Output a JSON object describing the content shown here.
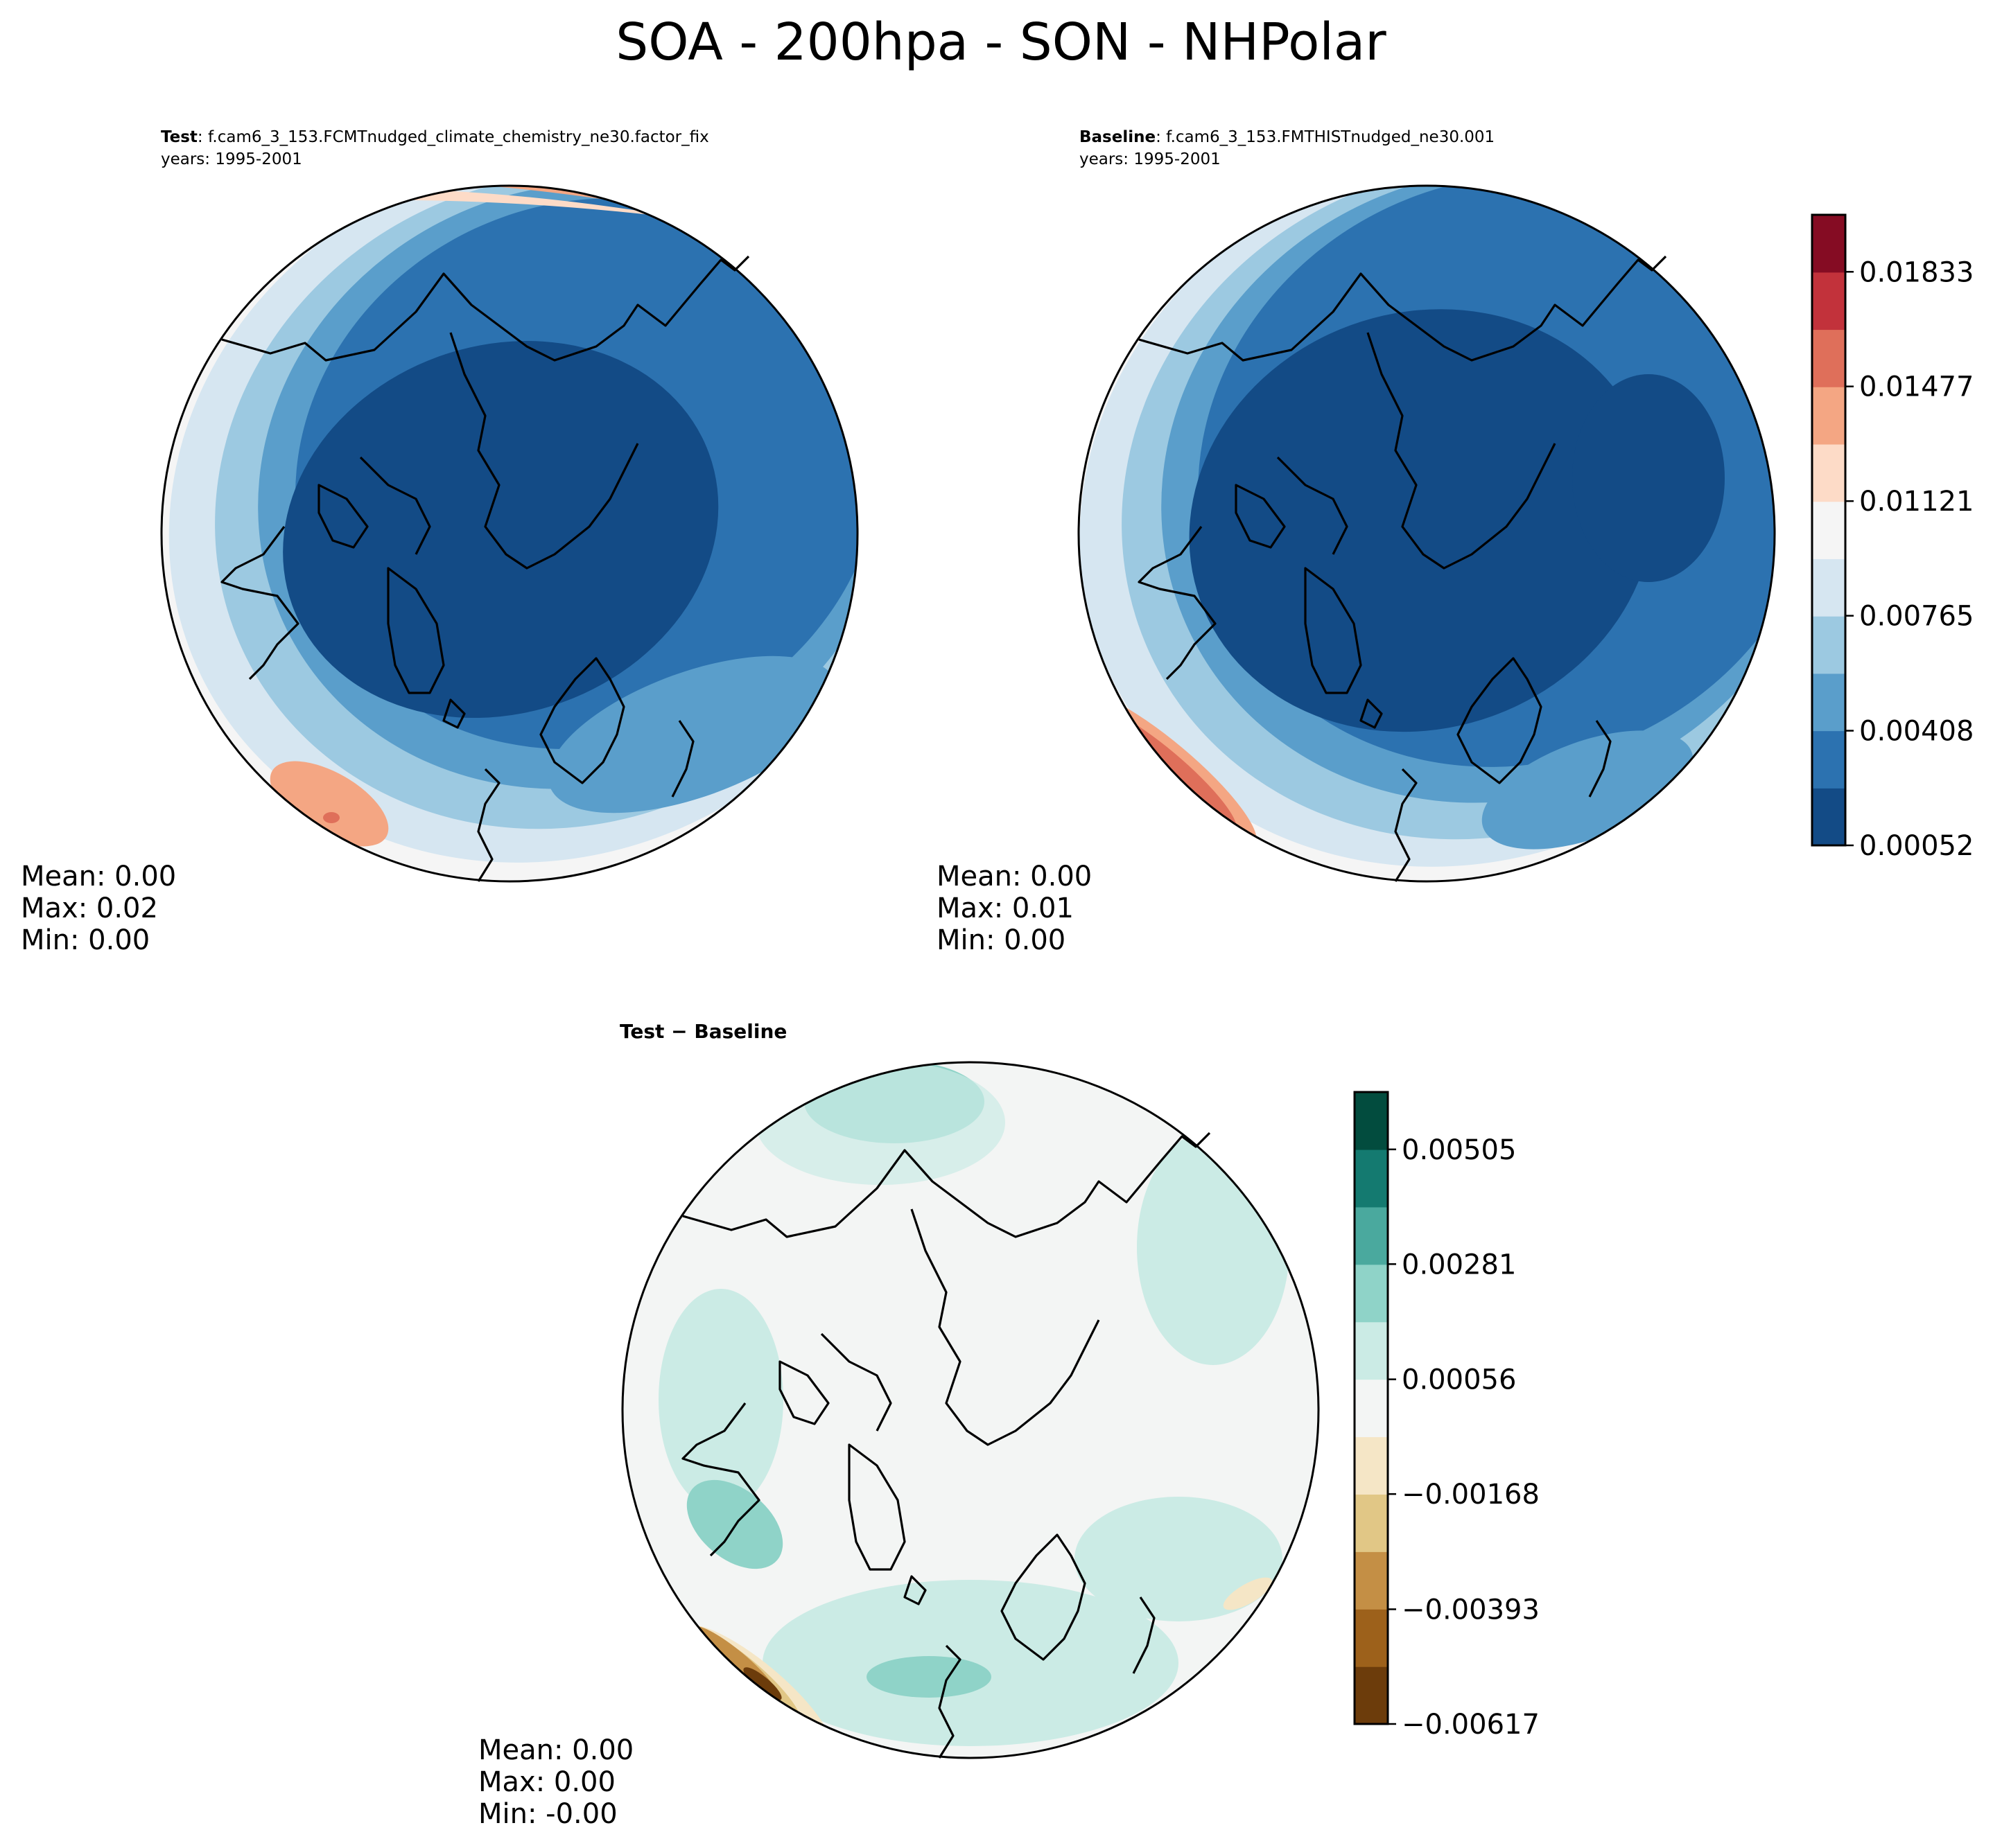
{
  "figure": {
    "suptitle": "SOA - 200hpa - SON - NHPolar"
  },
  "panels": {
    "test": {
      "label": "Test",
      "case": ": f.cam6_3_153.FCMTnudged_climate_chemistry_ne30.factor_fix",
      "years": "years: 1995-2001",
      "mean": "Mean:  0.00",
      "max": "Max:  0.02",
      "min": "Min:  0.00"
    },
    "baseline": {
      "label": "Baseline",
      "case": ": f.cam6_3_153.FMTHISTnudged_ne30.001",
      "years": "years: 1995-2001",
      "mean": "Mean:  0.00",
      "max": "Max:  0.01",
      "min": "Min:  0.00"
    },
    "diff": {
      "title": "Test − Baseline",
      "mean": "Mean:  0.00",
      "max": "Max:  0.00",
      "min": "Min: -0.00"
    }
  },
  "chart_data": [
    {
      "type": "heatmap",
      "name": "Test",
      "projection": "North Polar Stereographic",
      "variable": "SOA",
      "level": "200hpa",
      "season": "SON",
      "summary": {
        "mean": 0.0,
        "max": 0.02,
        "min": 0.0
      }
    },
    {
      "type": "heatmap",
      "name": "Baseline",
      "projection": "North Polar Stereographic",
      "summary": {
        "mean": 0.0,
        "max": 0.01,
        "min": 0.0
      }
    },
    {
      "type": "heatmap",
      "name": "Test - Baseline",
      "projection": "North Polar Stereographic",
      "summary": {
        "mean": 0.0,
        "max": 0.0,
        "min": -0.0
      }
    }
  ],
  "colorbars": {
    "main": {
      "colormap": "RdBu_r",
      "range": [
        0.00052,
        0.0201
      ],
      "tick_values": [
        0.00052,
        0.00408,
        0.00765,
        0.01121,
        0.01477,
        0.01833
      ],
      "tick_labels": [
        "0.00052",
        "0.00408",
        "0.00765",
        "0.01121",
        "0.01477",
        "0.01833"
      ],
      "colors": [
        "#134b86",
        "#2c72b0",
        "#5a9ecb",
        "#9cc9e1",
        "#d6e6f1",
        "#f5f5f5",
        "#fddbc7",
        "#f4a683",
        "#df6f5a",
        "#c2323b",
        "#850c23"
      ]
    },
    "diff": {
      "colormap": "BrBG",
      "range": [
        -0.00617,
        0.00617
      ],
      "tick_values": [
        -0.00617,
        -0.00393,
        -0.00168,
        0.00056,
        0.00281,
        0.00505
      ],
      "tick_labels": [
        "−0.00617",
        "−0.00393",
        "−0.00168",
        "0.00056",
        "0.00281",
        "0.00505"
      ],
      "colors": [
        "#6c3c0b",
        "#9d611b",
        "#c48f45",
        "#e1c786",
        "#f5e6c6",
        "#f3f5f4",
        "#cbebe5",
        "#8fd3c8",
        "#4aa99e",
        "#147a70",
        "#024c3e"
      ]
    }
  }
}
